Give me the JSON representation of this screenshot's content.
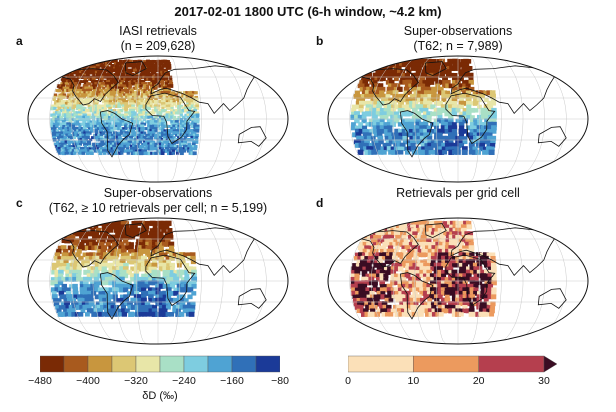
{
  "header": {
    "title": "2017-02-01 1800 UTC (6-h window, ~4.2 km)"
  },
  "panels": [
    {
      "letter": "a",
      "title1": "IASI retrievals",
      "title2": "(n = 209,628)",
      "mode": "dd"
    },
    {
      "letter": "b",
      "title1": "Super-observations",
      "title2": "(T62; n = 7,989)",
      "mode": "dd"
    },
    {
      "letter": "c",
      "title1": "Super-observations",
      "title2": "(T62, ≥ 10 retrievals per cell; n = 5,199)",
      "mode": "dd"
    },
    {
      "letter": "d",
      "title1": "Retrievals per grid cell",
      "title2": "",
      "mode": "count"
    }
  ],
  "colorbar_dd": {
    "colors": [
      "#7a2a05",
      "#a85a1e",
      "#c8963e",
      "#dcc774",
      "#e8e6a8",
      "#a9e0c6",
      "#7ecde0",
      "#4fa3d3",
      "#3070b8",
      "#1b3a98"
    ],
    "ticks": [
      "−480",
      "−400",
      "−320",
      "−240",
      "−160",
      "−80"
    ],
    "label": "δD (‰)"
  },
  "colorbar_count": {
    "colors": [
      "#fbe0b8",
      "#ec9a5e",
      "#b53f4e",
      "#3a0d23"
    ],
    "ticks": [
      "0",
      "10",
      "20",
      "30"
    ],
    "extend": "max"
  },
  "icons": {
    "map": "world-map-icon"
  }
}
